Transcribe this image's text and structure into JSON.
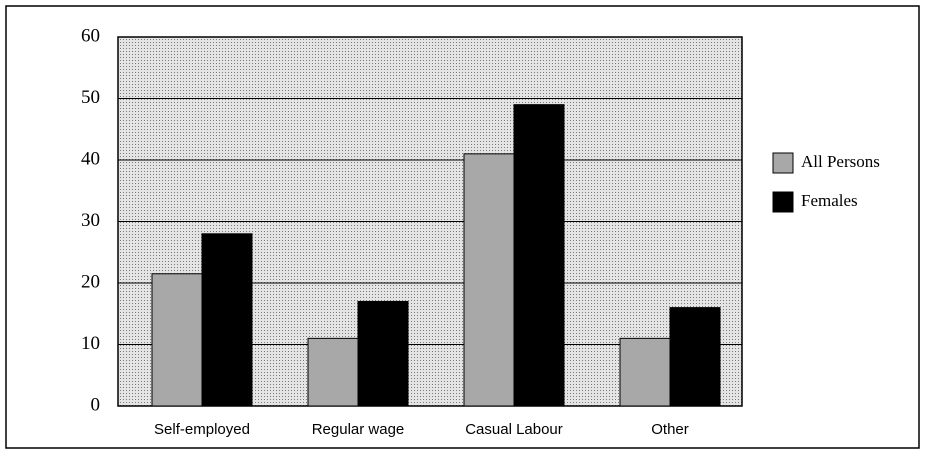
{
  "chart_data": {
    "type": "bar",
    "categories": [
      "Self-employed",
      "Regular wage",
      "Casual Labour",
      "Other"
    ],
    "series": [
      {
        "name": "All Persons",
        "color": "#a8a8a8",
        "values": [
          21.5,
          11,
          41,
          11
        ]
      },
      {
        "name": "Females",
        "color": "#000000",
        "values": [
          28,
          17,
          49,
          16
        ]
      }
    ],
    "ylim": [
      0,
      60
    ],
    "yticks": [
      0,
      10,
      20,
      30,
      40,
      50,
      60
    ],
    "grid": true,
    "legend": "right"
  }
}
